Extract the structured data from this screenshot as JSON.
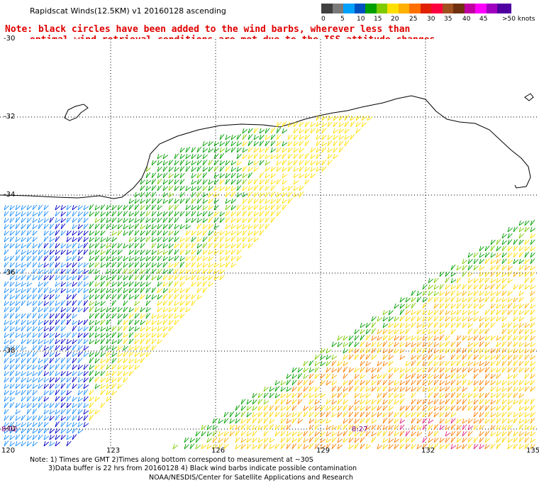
{
  "title": "Rapidscat Winds(12.5KM) v1 20160128 ascending",
  "note_line1": "Note: black circles have been added to the wind barbs, wherever less than",
  "note_line2": "optimal wind retrieval conditions are met due to the ISS attitude changes.",
  "legend": {
    "colors": [
      "#404040",
      "#7a7a7a",
      "#00a0ff",
      "#0050c0",
      "#00a000",
      "#7ecb00",
      "#ffe000",
      "#ffb000",
      "#ff7000",
      "#e02000",
      "#ff0040",
      "#a05020",
      "#703010",
      "#c000a0",
      "#ff00ff",
      "#a000c0",
      "#5000a0"
    ],
    "labels": [
      "0",
      "5",
      "10",
      "15",
      "20",
      "25",
      "30",
      "35",
      "40",
      "45",
      ">50 knots"
    ]
  },
  "lat_labels": [
    "-30",
    "-32",
    "-34",
    "-36",
    "-38",
    "-40"
  ],
  "lon_labels": [
    "120",
    "123",
    "126",
    "129",
    "132",
    "135"
  ],
  "time_labels": [
    "8:02",
    "8:27"
  ],
  "footer": {
    "line1": "Note: 1) Times are GMT 2)Times along bottom correspond to measurement at ~30S",
    "line2": "3)Data buffer is 22 hrs from 20160128 4) Black wind barbs indicate possible contamination",
    "line3": "NOAA/NESDIS/Center for Satellite Applications and Research"
  },
  "map": {
    "lat_range": [
      -30,
      -40
    ],
    "lon_range": [
      120,
      135
    ],
    "grid": "dotted"
  }
}
